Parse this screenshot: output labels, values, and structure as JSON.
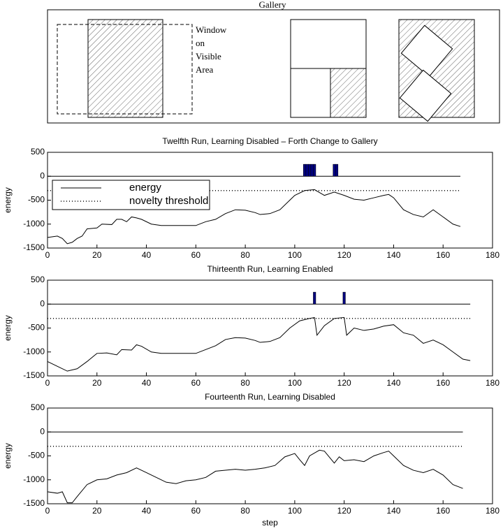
{
  "diagram": {
    "title": "Gallery",
    "label": [
      "Window",
      "on",
      "Visible",
      "Area"
    ]
  },
  "chart_data": [
    {
      "type": "line",
      "title": "Twelfth Run, Learning Disabled – Forth Change to Gallery",
      "ylabel": "energy",
      "xlim": [
        0,
        180
      ],
      "ylim": [
        -1500,
        500
      ],
      "xticks": [
        0,
        20,
        40,
        60,
        80,
        100,
        120,
        140,
        160,
        180
      ],
      "yticks": [
        500,
        0,
        -500,
        -1000,
        -1500
      ],
      "legend": "upper left",
      "series": [
        {
          "name": "energy",
          "color": "#000000",
          "style": "solid",
          "x": [
            0,
            4,
            6,
            8,
            10,
            12,
            14,
            16,
            20,
            22,
            26,
            28,
            30,
            32,
            34,
            36,
            38,
            42,
            46,
            60,
            64,
            68,
            72,
            76,
            80,
            84,
            86,
            90,
            94,
            98,
            100,
            104,
            108,
            112,
            116,
            120,
            124,
            128,
            132,
            136,
            138,
            140,
            144,
            148,
            152,
            156,
            160,
            164,
            167
          ],
          "values": [
            -1280,
            -1250,
            -1300,
            -1410,
            -1380,
            -1300,
            -1250,
            -1100,
            -1080,
            -1000,
            -1010,
            -900,
            -900,
            -950,
            -850,
            -870,
            -900,
            -1000,
            -1030,
            -1030,
            -950,
            -900,
            -780,
            -700,
            -710,
            -760,
            -800,
            -780,
            -700,
            -500,
            -400,
            -300,
            -280,
            -400,
            -330,
            -400,
            -480,
            -500,
            -450,
            -400,
            -380,
            -450,
            -700,
            -800,
            -850,
            -700,
            -850,
            -1000,
            -1050
          ]
        },
        {
          "name": "novelty threshold",
          "color": "#000000",
          "style": "dotted",
          "x": [
            0,
            167
          ],
          "values": [
            -300,
            -300
          ]
        },
        {
          "color": "#000000",
          "style": "solid",
          "x": [
            0,
            167
          ],
          "values": [
            0,
            0
          ]
        },
        {
          "type": "bar",
          "color": "#000080",
          "x": [
            104,
            105,
            106,
            107,
            108,
            116,
            117
          ],
          "values": [
            250,
            250,
            250,
            250,
            250,
            250,
            250
          ]
        }
      ]
    },
    {
      "type": "line",
      "title": "Thirteenth Run, Learning Enabled",
      "ylabel": "energy",
      "xlim": [
        0,
        180
      ],
      "ylim": [
        -1500,
        500
      ],
      "xticks": [
        0,
        20,
        40,
        60,
        80,
        100,
        120,
        140,
        160,
        180
      ],
      "yticks": [
        500,
        0,
        -500,
        -1000,
        -1500
      ],
      "series": [
        {
          "color": "#000000",
          "style": "solid",
          "x": [
            0,
            4,
            8,
            12,
            16,
            20,
            24,
            28,
            30,
            34,
            36,
            38,
            42,
            46,
            60,
            64,
            68,
            72,
            76,
            80,
            84,
            86,
            90,
            94,
            98,
            102,
            106,
            108,
            109,
            112,
            116,
            120,
            121,
            124,
            128,
            132,
            136,
            140,
            144,
            148,
            152,
            156,
            160,
            164,
            168,
            171
          ],
          "values": [
            -1200,
            -1300,
            -1400,
            -1350,
            -1200,
            -1030,
            -1020,
            -1060,
            -950,
            -960,
            -850,
            -880,
            -1000,
            -1030,
            -1030,
            -950,
            -870,
            -740,
            -700,
            -710,
            -760,
            -800,
            -780,
            -700,
            -500,
            -350,
            -300,
            -280,
            -650,
            -450,
            -300,
            -280,
            -650,
            -500,
            -550,
            -520,
            -460,
            -430,
            -600,
            -650,
            -820,
            -750,
            -850,
            -1000,
            -1150,
            -1180
          ]
        },
        {
          "color": "#000000",
          "style": "dotted",
          "x": [
            0,
            171
          ],
          "values": [
            -300,
            -300
          ]
        },
        {
          "color": "#000000",
          "style": "solid",
          "x": [
            0,
            171
          ],
          "values": [
            0,
            0
          ]
        },
        {
          "type": "bar",
          "color": "#000080",
          "x": [
            108,
            120
          ],
          "values": [
            250,
            250
          ]
        }
      ]
    },
    {
      "type": "line",
      "title": "Fourteenth Run, Learning Disabled",
      "ylabel": "energy",
      "xlabel": "step",
      "xlim": [
        0,
        180
      ],
      "ylim": [
        -1500,
        500
      ],
      "xticks": [
        0,
        20,
        40,
        60,
        80,
        100,
        120,
        140,
        160,
        180
      ],
      "yticks": [
        500,
        0,
        -500,
        -1000,
        -1500
      ],
      "series": [
        {
          "color": "#000000",
          "style": "solid",
          "x": [
            0,
            4,
            6,
            8,
            10,
            12,
            16,
            20,
            24,
            28,
            32,
            36,
            40,
            44,
            48,
            52,
            56,
            60,
            64,
            68,
            72,
            76,
            80,
            84,
            88,
            92,
            96,
            100,
            102,
            104,
            106,
            110,
            112,
            116,
            118,
            120,
            124,
            128,
            132,
            136,
            138,
            140,
            144,
            148,
            152,
            156,
            160,
            164,
            168
          ],
          "values": [
            -1250,
            -1280,
            -1250,
            -1480,
            -1480,
            -1350,
            -1100,
            -1000,
            -980,
            -900,
            -850,
            -750,
            -850,
            -950,
            -1050,
            -1080,
            -1020,
            -1000,
            -950,
            -820,
            -800,
            -780,
            -800,
            -780,
            -750,
            -700,
            -520,
            -450,
            -580,
            -700,
            -500,
            -380,
            -400,
            -650,
            -520,
            -600,
            -580,
            -620,
            -500,
            -430,
            -400,
            -500,
            -700,
            -800,
            -850,
            -780,
            -900,
            -1100,
            -1180
          ]
        },
        {
          "color": "#000000",
          "style": "dotted",
          "x": [
            0,
            168
          ],
          "values": [
            -300,
            -300
          ]
        },
        {
          "color": "#000000",
          "style": "solid",
          "x": [
            0,
            168
          ],
          "values": [
            0,
            0
          ]
        }
      ]
    }
  ]
}
